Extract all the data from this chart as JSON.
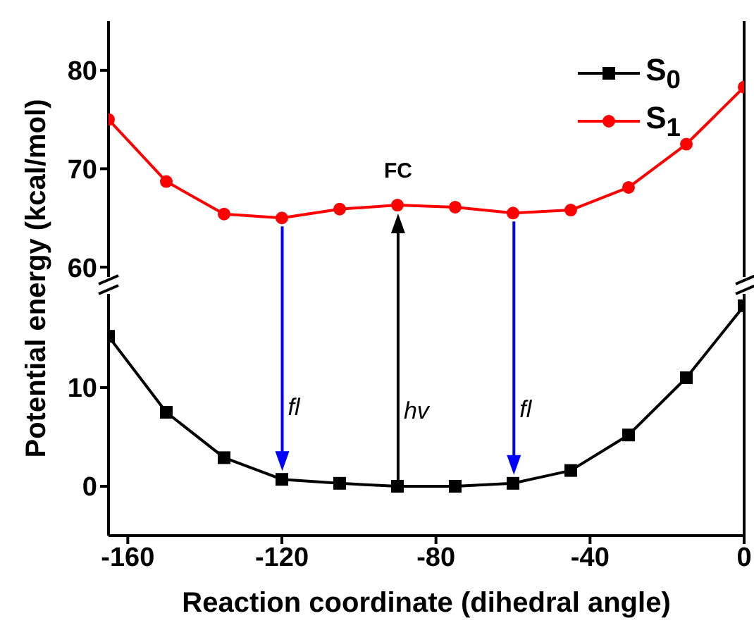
{
  "chart_data": [
    {
      "type": "line",
      "ylabel": "Potential energy (kcal/mol)",
      "x": [
        -165,
        -150,
        -135,
        -120,
        -105,
        -90,
        -75,
        -60,
        -45,
        -30,
        -15,
        0
      ],
      "xlim": [
        -165,
        0
      ],
      "xticks": [
        -160,
        -120,
        -80,
        -40,
        0
      ],
      "ylim": [
        58.5,
        85
      ],
      "yticks": [
        60,
        70,
        80
      ],
      "tick_labels": "y",
      "legend": "top right",
      "series": [
        {
          "name": "S$_{1}$",
          "color": "#ff0000",
          "marker": "circle",
          "values": [
            75,
            68.7,
            65.4,
            65,
            65.9,
            66.3,
            66.1,
            65.5,
            65.8,
            68.1,
            72.5,
            78.3
          ]
        }
      ],
      "annotations": [
        {
          "text": "FC",
          "x": -90,
          "y": 66.3
        }
      ]
    },
    {
      "type": "line",
      "xlabel": "Reaction coordinate (dihedral angle)",
      "x": [
        -165,
        -150,
        -135,
        -120,
        -105,
        -90,
        -75,
        -60,
        -45,
        -30,
        -15,
        0
      ],
      "xlim": [
        -165,
        0
      ],
      "xticks": [
        -160,
        -120,
        -80,
        -40,
        0
      ],
      "ylim": [
        -5,
        20
      ],
      "yticks": [
        0,
        10
      ],
      "series": [
        {
          "name": "S$_{0}$",
          "color": "#000000",
          "marker": "square",
          "values": [
            15.2,
            7.5,
            2.9,
            0.7,
            0.3,
            0,
            0,
            0.3,
            1.6,
            5.2,
            11,
            18.3
          ]
        }
      ],
      "annotations": [
        {
          "text": "fl",
          "x": -120,
          "y": 0.7
        },
        {
          "text": "hv",
          "x": -90,
          "y": 0
        },
        {
          "text": "fl",
          "x": -60,
          "y": 0.3
        }
      ]
    }
  ]
}
